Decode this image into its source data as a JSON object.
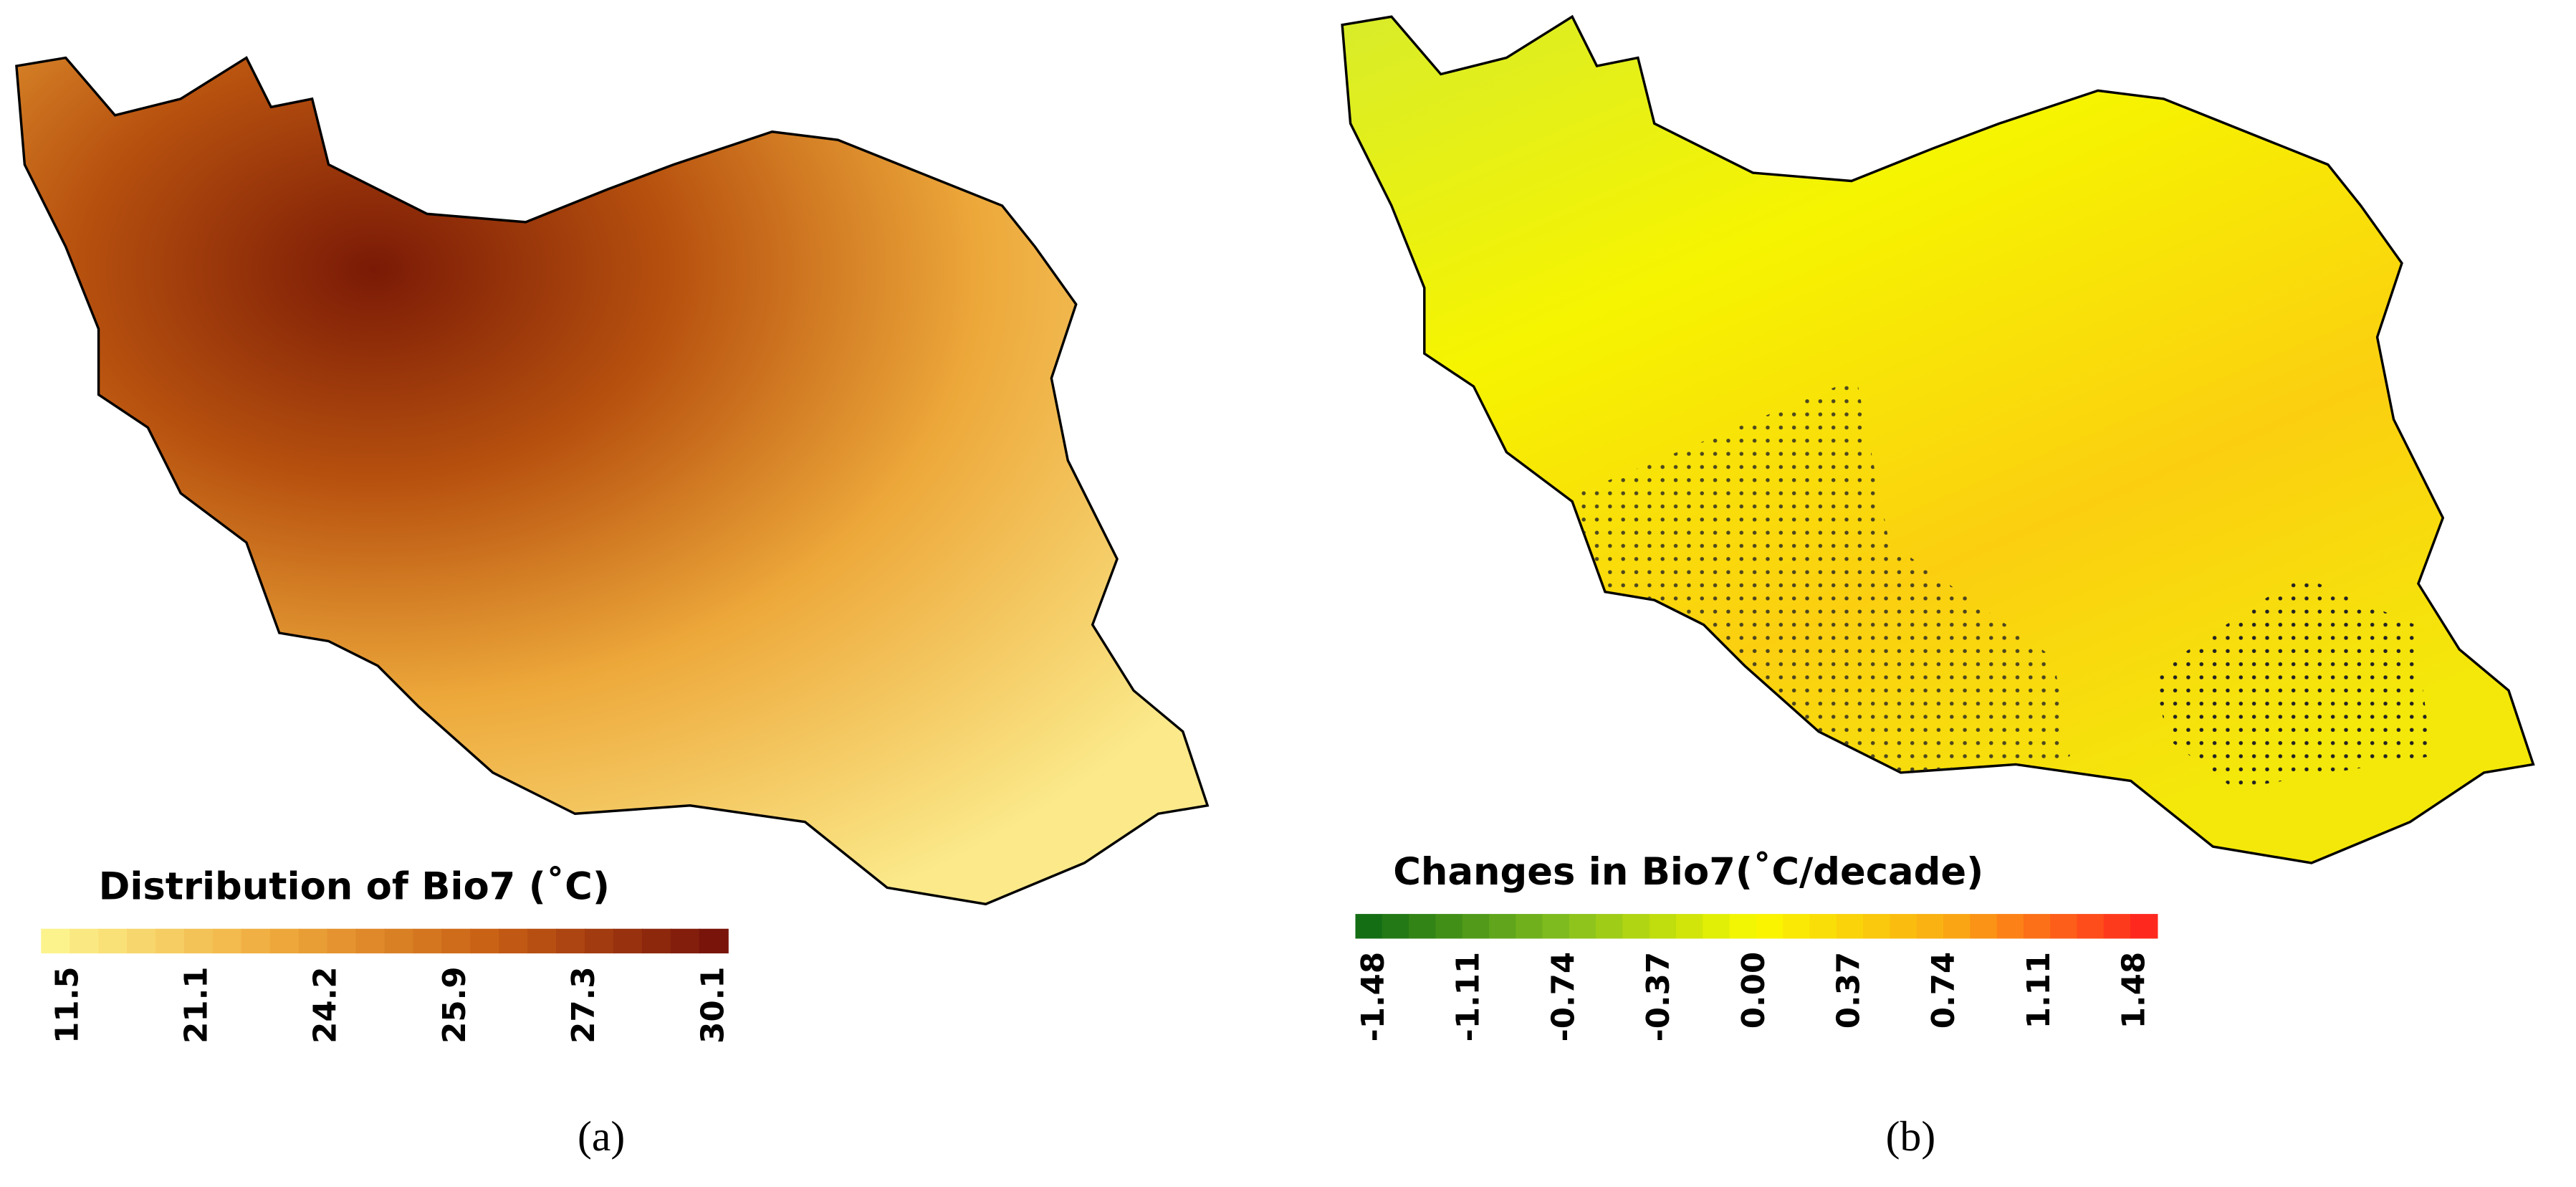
{
  "panels": [
    {
      "label": "(a)",
      "legend_title": "Distribution of Bio7 (˚C)",
      "ticks": [
        11.5,
        21.1,
        24.2,
        25.9,
        27.3,
        30.1
      ]
    },
    {
      "label": "(b)",
      "legend_title": "Changes in Bio7(˚C/decade)",
      "ticks": [
        -1.48,
        -1.11,
        -0.74,
        -0.37,
        {
          "value": 0,
          "label": "0.00"
        },
        0.37,
        0.74,
        1.11,
        1.48
      ]
    }
  ]
}
